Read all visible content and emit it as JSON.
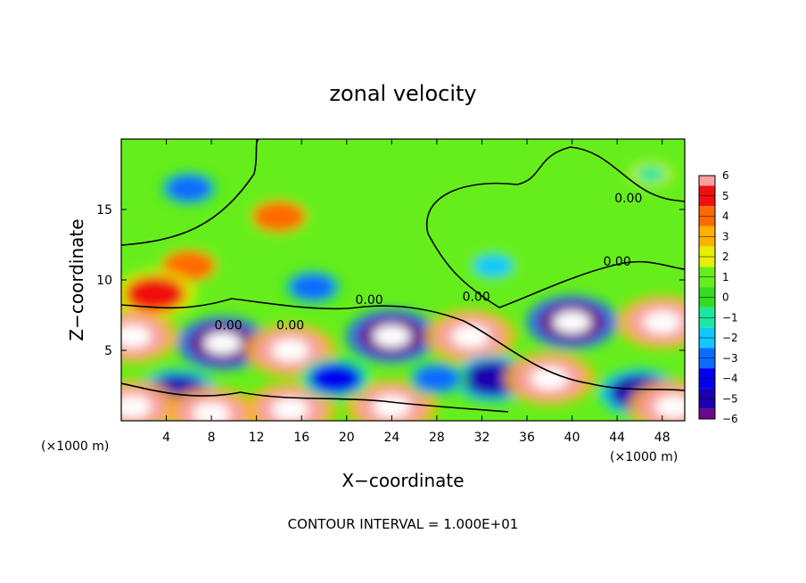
{
  "chart_data": {
    "type": "heatmap",
    "title": "zonal velocity",
    "xlabel": "X−coordinate",
    "ylabel": "Z−coordinate",
    "x_unit_left": "(×1000 m)",
    "x_unit_right": "(×1000 m)",
    "xlim": [
      0,
      50
    ],
    "ylim": [
      0,
      20
    ],
    "x_ticks": [
      4,
      8,
      12,
      16,
      20,
      24,
      28,
      32,
      36,
      40,
      44,
      48
    ],
    "y_ticks": [
      5,
      10,
      15
    ],
    "colorbar": {
      "min": -6,
      "max": 6,
      "ticks": [
        6,
        5,
        4,
        3,
        2,
        1,
        0,
        -1,
        -2,
        -3,
        -4,
        -5,
        -6
      ],
      "tick_labels": [
        "6",
        "5",
        "4",
        "3",
        "2",
        "1",
        "0",
        "−1",
        "−2",
        "−3",
        "−4",
        "−5",
        "−6"
      ]
    },
    "contour_labels": [
      {
        "text": "0.00",
        "x": 45,
        "y": 15.5
      },
      {
        "text": "0.00",
        "x": 44,
        "y": 11
      },
      {
        "text": "0.00",
        "x": 31.5,
        "y": 8.5
      },
      {
        "text": "0.00",
        "x": 22,
        "y": 8.3
      },
      {
        "text": "0.00",
        "x": 15,
        "y": 6.5
      },
      {
        "text": "0.00",
        "x": 9.5,
        "y": 6.5
      }
    ],
    "features": [
      {
        "x": 6,
        "y": 16.5,
        "value": -3
      },
      {
        "x": 14,
        "y": 14.5,
        "value": 4
      },
      {
        "x": 6,
        "y": 11,
        "value": 4
      },
      {
        "x": 3,
        "y": 9,
        "value": 5
      },
      {
        "x": 17,
        "y": 9.5,
        "value": -3
      },
      {
        "x": 33,
        "y": 11,
        "value": -2
      },
      {
        "x": 47,
        "y": 17.5,
        "value": -1
      },
      {
        "x": 24,
        "y": 6,
        "value": -6
      },
      {
        "x": 9,
        "y": 5.5,
        "value": -6
      },
      {
        "x": 15,
        "y": 5,
        "value": 6
      },
      {
        "x": 31,
        "y": 6,
        "value": 6
      },
      {
        "x": 40,
        "y": 7,
        "value": -6
      },
      {
        "x": 48,
        "y": 7,
        "value": 6
      },
      {
        "x": 1,
        "y": 6,
        "value": 6
      },
      {
        "x": 33,
        "y": 3,
        "value": -5
      },
      {
        "x": 38,
        "y": 3,
        "value": 6
      },
      {
        "x": 46,
        "y": 2,
        "value": -5
      },
      {
        "x": 5,
        "y": 2,
        "value": -5
      },
      {
        "x": 8,
        "y": 0.5,
        "value": 6
      },
      {
        "x": 15,
        "y": 0.8,
        "value": 6
      },
      {
        "x": 24,
        "y": 1,
        "value": 6
      },
      {
        "x": 49,
        "y": 1,
        "value": 6
      },
      {
        "x": 1,
        "y": 1,
        "value": 6
      },
      {
        "x": 19,
        "y": 3,
        "value": -4
      },
      {
        "x": 28,
        "y": 3,
        "value": -3
      }
    ]
  },
  "footer": "CONTOUR INTERVAL = 1.000E+01"
}
